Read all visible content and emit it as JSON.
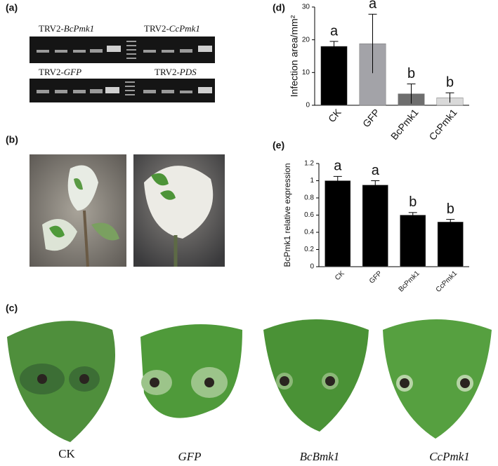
{
  "panel_labels": [
    "(a)",
    "(b)",
    "(c)",
    "(d)",
    "(e)"
  ],
  "gel_labels": [
    {
      "prefix": "TRV2-",
      "gene": "BcPmk1"
    },
    {
      "prefix": "TRV2-",
      "gene": "CcPmk1"
    },
    {
      "prefix": "TRV2-",
      "gene": "GFP"
    },
    {
      "prefix": "TRV2-",
      "gene": "PDS"
    }
  ],
  "leaf_labels": [
    "CK",
    "GFP",
    "BcBmk1",
    "CcPmk1"
  ],
  "chart_data": [
    {
      "type": "bar",
      "ylabel": "Infection area/mm²",
      "categories": [
        "CK",
        "GFP",
        "BcPmk1",
        "CcPmk1"
      ],
      "values": [
        18,
        18.8,
        3.5,
        2.3
      ],
      "errors": [
        1.5,
        9,
        3,
        1.5
      ],
      "colors": [
        "#000000",
        "#a3a3a8",
        "#6e6e6e",
        "#d9d9d9"
      ],
      "annotations": [
        "a",
        "a",
        "b",
        "b"
      ],
      "ylim": [
        0,
        30
      ],
      "yticks": [
        0,
        10,
        20,
        30
      ]
    },
    {
      "type": "bar",
      "ylabel": "BcPmk1 relative expression",
      "categories": [
        "CK",
        "GFP",
        "BcPmk1",
        "CcPmk1"
      ],
      "values": [
        1,
        0.95,
        0.6,
        0.52
      ],
      "errors": [
        0.05,
        0.05,
        0.03,
        0.03
      ],
      "colors": [
        "#000000",
        "#000000",
        "#000000",
        "#000000"
      ],
      "annotations": [
        "a",
        "a",
        "b",
        "b"
      ],
      "ylim": [
        0,
        1.2
      ],
      "yticks": [
        0,
        0.2,
        0.4,
        0.6,
        0.8,
        1,
        1.2
      ]
    }
  ]
}
